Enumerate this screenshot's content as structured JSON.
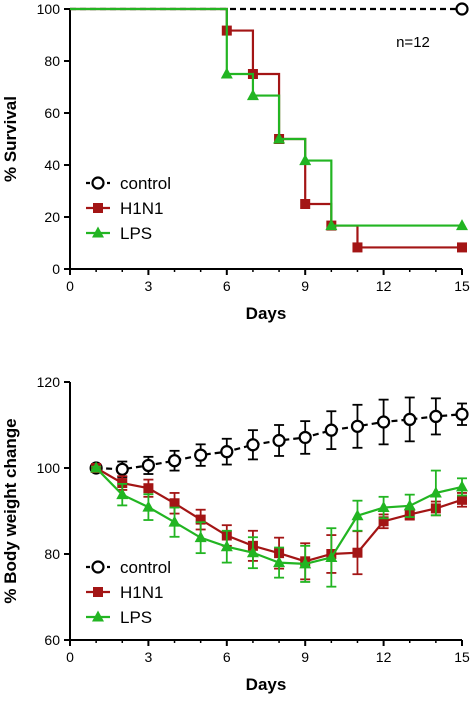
{
  "chart_data": [
    {
      "type": "line",
      "step": true,
      "ylabel": "% Survival",
      "xlabel": "Days",
      "annotation": "n=12",
      "xlim": [
        0,
        15
      ],
      "ylim": [
        0,
        100
      ],
      "xticks": [
        "0",
        "3",
        "6",
        "9",
        "12",
        "15"
      ],
      "yticks": [
        "0",
        "20",
        "40",
        "60",
        "80",
        "100"
      ],
      "legend_position": "lower-left",
      "series": [
        {
          "name": "control",
          "color": "#000000",
          "marker": "open-circle",
          "dashed": true,
          "points": [
            [
              0,
              100
            ],
            [
              15,
              100
            ]
          ]
        },
        {
          "name": "H1N1",
          "color": "#a31515",
          "marker": "square",
          "dashed": false,
          "points": [
            [
              0,
              100
            ],
            [
              6,
              91.7
            ],
            [
              7,
              75
            ],
            [
              8,
              50
            ],
            [
              9,
              25
            ],
            [
              10,
              16.7
            ],
            [
              11,
              8.3
            ],
            [
              15,
              8.3
            ]
          ]
        },
        {
          "name": "LPS",
          "color": "#22b522",
          "marker": "triangle",
          "dashed": false,
          "points": [
            [
              0,
              100
            ],
            [
              6,
              75
            ],
            [
              7,
              66.7
            ],
            [
              8,
              50
            ],
            [
              9,
              41.7
            ],
            [
              10,
              16.7
            ],
            [
              15,
              16.7
            ]
          ]
        }
      ]
    },
    {
      "type": "line",
      "step": false,
      "ylabel": "% Body weight change",
      "xlabel": "Days",
      "xlim": [
        0,
        15
      ],
      "ylim": [
        60,
        120
      ],
      "xticks": [
        "0",
        "3",
        "6",
        "9",
        "12",
        "15"
      ],
      "yticks": [
        "60",
        "80",
        "100",
        "120"
      ],
      "legend_position": "lower-left",
      "series": [
        {
          "name": "control",
          "color": "#000000",
          "marker": "open-circle",
          "dashed": true,
          "x": [
            1,
            2,
            3,
            4,
            5,
            6,
            7,
            8,
            9,
            10,
            11,
            12,
            13,
            14,
            15
          ],
          "y": [
            100,
            99.7,
            100.6,
            101.7,
            103,
            103.8,
            105.4,
            106.4,
            107.1,
            108.8,
            109.7,
            110.7,
            111.3,
            112,
            112.5
          ],
          "err": [
            0.5,
            1.8,
            2,
            2.3,
            2.5,
            3,
            3.4,
            3.6,
            3.8,
            4.4,
            5,
            5.2,
            5.1,
            4.2,
            2.5
          ]
        },
        {
          "name": "H1N1",
          "color": "#a31515",
          "marker": "square",
          "dashed": false,
          "x": [
            1,
            2,
            3,
            4,
            5,
            6,
            7,
            8,
            9,
            10,
            11,
            12,
            13,
            14,
            15
          ],
          "y": [
            100,
            96.5,
            95.3,
            91.8,
            88,
            84.3,
            81.9,
            80.2,
            78.3,
            80,
            80.3,
            87.6,
            89.2,
            90.6,
            92.6
          ],
          "err": [
            0.3,
            1.6,
            2,
            2.4,
            2.3,
            2.4,
            3.5,
            3.6,
            4.2,
            4.4,
            5,
            1.6,
            1.2,
            1.6,
            1.6
          ]
        },
        {
          "name": "LPS",
          "color": "#22b522",
          "marker": "triangle",
          "dashed": false,
          "x": [
            1,
            2,
            3,
            4,
            5,
            6,
            7,
            8,
            9,
            10,
            11,
            12,
            13,
            14,
            15
          ],
          "y": [
            100,
            93.8,
            90.9,
            87.4,
            83.8,
            81.7,
            80.3,
            78,
            77.7,
            79.2,
            88.9,
            90.8,
            91.2,
            94.2,
            95.6
          ],
          "err": [
            0.3,
            2.5,
            3,
            3.4,
            3.6,
            3.7,
            3.6,
            3.5,
            4.2,
            6.8,
            3.5,
            2.5,
            2.6,
            5.2,
            2
          ]
        }
      ]
    }
  ]
}
